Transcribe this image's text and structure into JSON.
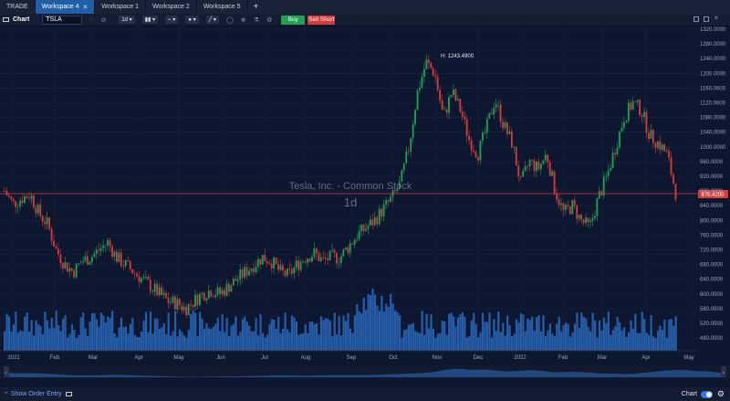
{
  "tabs": [
    {
      "label": "TRADE",
      "active": false
    },
    {
      "label": "Workspace 4",
      "active": true
    },
    {
      "label": "Workspace 1",
      "active": false
    },
    {
      "label": "Workspace 2",
      "active": false
    },
    {
      "label": "Workspace 5",
      "active": false
    }
  ],
  "toolbar": {
    "chart_label": "Chart",
    "symbol": "TSLA",
    "interval": "1d",
    "buy_label": "Buy",
    "sell_label": "Sell Short"
  },
  "chart": {
    "watermark_name": "Tesla, Inc. - Common Stock",
    "watermark_interval": "1d",
    "high_label": "H: 1243.4900",
    "last_price_label": "876.4200"
  },
  "footer": {
    "show_order_entry": "Show Order Entry",
    "chart_toggle_label": "Chart"
  },
  "colors": {
    "up": "#1fa352",
    "down": "#d93a3a",
    "volume": "#2a6bc0",
    "price_line": "#d93a3a"
  },
  "chart_data": {
    "type": "candlestick",
    "yticks": [
      "1320.0000",
      "1280.0000",
      "1240.0000",
      "1200.0000",
      "1160.0000",
      "1120.0000",
      "1080.0000",
      "1040.0000",
      "1000.0000",
      "960.0000",
      "920.0000",
      "880.0000",
      "840.0000",
      "800.0000",
      "760.0000",
      "720.0000",
      "680.0000",
      "640.0000",
      "600.0000",
      "560.0000",
      "520.0000",
      "480.0000"
    ],
    "ylim": [
      460,
      1330
    ],
    "months": [
      "2021",
      "Feb",
      "Mar",
      "Apr",
      "May",
      "Jun",
      "Jul",
      "Aug",
      "Sep",
      "Oct",
      "Nov",
      "Dec",
      "2022",
      "Feb",
      "Mar",
      "Apr",
      "May"
    ],
    "closes": [
      880,
      845,
      860,
      870,
      820,
      790,
      720,
      680,
      660,
      690,
      700,
      720,
      740,
      700,
      680,
      660,
      640,
      620,
      600,
      580,
      575,
      560,
      580,
      600,
      610,
      600,
      620,
      640,
      660,
      680,
      700,
      690,
      660,
      650,
      680,
      700,
      710,
      690,
      700,
      700,
      730,
      760,
      780,
      800,
      830,
      860,
      900,
      1000,
      1150,
      1230,
      1200,
      1080,
      1150,
      1100,
      1020,
      980,
      1050,
      1130,
      1060,
      1010,
      900,
      960,
      940,
      980,
      880,
      820,
      840,
      800,
      780,
      860,
      920,
      1000,
      1080,
      1120,
      1100,
      1030,
      1010,
      980,
      876
    ],
    "high": 1243.49,
    "last": 876.42
  }
}
